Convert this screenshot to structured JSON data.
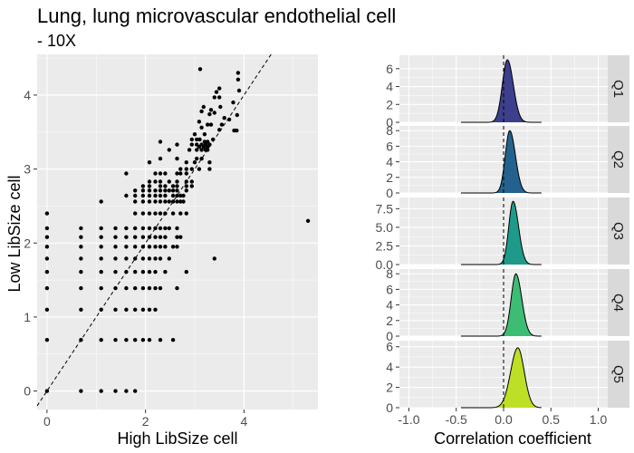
{
  "title": "Lung, lung microvascular endothelial cell",
  "subtitle": "- 10X",
  "colors": {
    "panel_bg": "#ebebeb",
    "grid": "#ffffff",
    "strip_bg": "#d9d9d9",
    "ridge_fills": [
      "#3b3f8c",
      "#23628e",
      "#1f9a8a",
      "#3dbc74",
      "#bddf26"
    ]
  },
  "chart_data": [
    {
      "type": "scatter",
      "xlabel": "High LibSize cell",
      "ylabel": "Low LibSize cell",
      "xlim": [
        -0.2,
        5.5
      ],
      "ylim": [
        -0.25,
        4.55
      ],
      "x_ticks": [
        "0",
        "2",
        "4"
      ],
      "y_ticks": [
        "0",
        "1",
        "2",
        "3",
        "4"
      ],
      "reference_line": "identity (dashed)",
      "points": [
        [
          0,
          0
        ],
        [
          0.69,
          0
        ],
        [
          1.1,
          0
        ],
        [
          1.39,
          0
        ],
        [
          1.61,
          0
        ],
        [
          1.79,
          0
        ],
        [
          0,
          0.69
        ],
        [
          0.69,
          0.69
        ],
        [
          1.1,
          0.69
        ],
        [
          1.39,
          0.69
        ],
        [
          1.61,
          0.69
        ],
        [
          1.79,
          0.69
        ],
        [
          1.95,
          0.69
        ],
        [
          2.08,
          0.69
        ],
        [
          2.3,
          0.69
        ],
        [
          2.56,
          0.69
        ],
        [
          0,
          1.1
        ],
        [
          0.69,
          1.1
        ],
        [
          1.1,
          1.1
        ],
        [
          1.39,
          1.1
        ],
        [
          1.61,
          1.1
        ],
        [
          1.79,
          1.1
        ],
        [
          1.95,
          1.1
        ],
        [
          2.08,
          1.1
        ],
        [
          2.2,
          1.1
        ],
        [
          0,
          1.39
        ],
        [
          0.69,
          1.39
        ],
        [
          1.1,
          1.39
        ],
        [
          1.39,
          1.39
        ],
        [
          1.61,
          1.39
        ],
        [
          1.79,
          1.39
        ],
        [
          1.95,
          1.39
        ],
        [
          2.08,
          1.39
        ],
        [
          2.2,
          1.39
        ],
        [
          2.3,
          1.39
        ],
        [
          2.64,
          1.39
        ],
        [
          0,
          1.61
        ],
        [
          0.69,
          1.61
        ],
        [
          1.1,
          1.61
        ],
        [
          1.39,
          1.61
        ],
        [
          1.61,
          1.61
        ],
        [
          1.79,
          1.61
        ],
        [
          1.95,
          1.61
        ],
        [
          2.08,
          1.61
        ],
        [
          2.2,
          1.61
        ],
        [
          2.4,
          1.61
        ],
        [
          2.83,
          1.61
        ],
        [
          0,
          1.79
        ],
        [
          0.69,
          1.79
        ],
        [
          1.1,
          1.79
        ],
        [
          1.39,
          1.79
        ],
        [
          1.61,
          1.79
        ],
        [
          1.79,
          1.79
        ],
        [
          1.95,
          1.79
        ],
        [
          2.08,
          1.79
        ],
        [
          2.2,
          1.79
        ],
        [
          2.3,
          1.79
        ],
        [
          2.48,
          1.79
        ],
        [
          3.4,
          1.79
        ],
        [
          0,
          1.95
        ],
        [
          0.69,
          1.95
        ],
        [
          1.1,
          1.95
        ],
        [
          1.39,
          1.95
        ],
        [
          1.61,
          1.95
        ],
        [
          1.79,
          1.95
        ],
        [
          1.95,
          1.95
        ],
        [
          2.08,
          1.95
        ],
        [
          2.2,
          1.95
        ],
        [
          2.3,
          1.95
        ],
        [
          2.4,
          1.95
        ],
        [
          2.56,
          1.95
        ],
        [
          2.64,
          1.95
        ],
        [
          0,
          2.08
        ],
        [
          0.69,
          2.08
        ],
        [
          1.1,
          2.08
        ],
        [
          1.39,
          2.08
        ],
        [
          1.61,
          2.08
        ],
        [
          1.79,
          2.08
        ],
        [
          1.95,
          2.08
        ],
        [
          2.08,
          2.08
        ],
        [
          2.2,
          2.08
        ],
        [
          2.3,
          2.08
        ],
        [
          2.4,
          2.08
        ],
        [
          2.64,
          2.08
        ],
        [
          2.71,
          2.08
        ],
        [
          0,
          2.2
        ],
        [
          0.69,
          2.2
        ],
        [
          1.1,
          2.2
        ],
        [
          1.39,
          2.2
        ],
        [
          1.61,
          2.2
        ],
        [
          1.79,
          2.2
        ],
        [
          1.95,
          2.2
        ],
        [
          2.08,
          2.2
        ],
        [
          2.2,
          2.2
        ],
        [
          2.3,
          2.2
        ],
        [
          2.4,
          2.2
        ],
        [
          2.48,
          2.2
        ],
        [
          2.64,
          2.2
        ],
        [
          0,
          2.4
        ],
        [
          1.79,
          2.4
        ],
        [
          1.95,
          2.4
        ],
        [
          2.08,
          2.4
        ],
        [
          2.2,
          2.4
        ],
        [
          2.3,
          2.4
        ],
        [
          2.4,
          2.4
        ],
        [
          2.56,
          2.4
        ],
        [
          2.71,
          2.4
        ],
        [
          2.83,
          2.4
        ],
        [
          1.1,
          2.56
        ],
        [
          1.79,
          2.56
        ],
        [
          1.95,
          2.56
        ],
        [
          2.08,
          2.56
        ],
        [
          2.2,
          2.56
        ],
        [
          2.3,
          2.56
        ],
        [
          2.4,
          2.56
        ],
        [
          2.48,
          2.56
        ],
        [
          2.56,
          2.56
        ],
        [
          2.64,
          2.56
        ],
        [
          2.71,
          2.56
        ],
        [
          2.77,
          2.56
        ],
        [
          1.61,
          2.64
        ],
        [
          1.79,
          2.64
        ],
        [
          1.95,
          2.64
        ],
        [
          2.08,
          2.64
        ],
        [
          2.2,
          2.64
        ],
        [
          2.3,
          2.64
        ],
        [
          2.4,
          2.64
        ],
        [
          2.56,
          2.64
        ],
        [
          2.64,
          2.64
        ],
        [
          2.71,
          2.64
        ],
        [
          2.77,
          2.64
        ],
        [
          1.79,
          2.71
        ],
        [
          1.95,
          2.71
        ],
        [
          2.08,
          2.71
        ],
        [
          2.2,
          2.71
        ],
        [
          2.3,
          2.71
        ],
        [
          2.4,
          2.71
        ],
        [
          2.48,
          2.71
        ],
        [
          2.56,
          2.71
        ],
        [
          2.64,
          2.71
        ],
        [
          2.83,
          2.71
        ],
        [
          1.95,
          2.77
        ],
        [
          2.08,
          2.77
        ],
        [
          2.3,
          2.77
        ],
        [
          2.4,
          2.77
        ],
        [
          2.56,
          2.77
        ],
        [
          2.64,
          2.77
        ],
        [
          2.83,
          2.77
        ],
        [
          2.94,
          2.77
        ],
        [
          2.08,
          2.83
        ],
        [
          2.2,
          2.83
        ],
        [
          2.3,
          2.83
        ],
        [
          2.48,
          2.83
        ],
        [
          2.64,
          2.83
        ],
        [
          2.83,
          2.83
        ],
        [
          2.94,
          2.83
        ],
        [
          2.2,
          2.94
        ],
        [
          2.3,
          2.94
        ],
        [
          2.4,
          2.94
        ],
        [
          2.64,
          2.94
        ],
        [
          2.71,
          2.94
        ],
        [
          2.83,
          2.94
        ],
        [
          1.61,
          2.94
        ],
        [
          2.71,
          3.0
        ],
        [
          2.83,
          3.0
        ],
        [
          2.94,
          3.0
        ],
        [
          3.09,
          3.0
        ],
        [
          3.3,
          3.0
        ],
        [
          2.08,
          3.09
        ],
        [
          2.83,
          3.09
        ],
        [
          3.0,
          3.09
        ],
        [
          3.3,
          3.09
        ],
        [
          2.3,
          3.14
        ],
        [
          2.64,
          3.14
        ],
        [
          3.04,
          3.14
        ],
        [
          3.14,
          3.14
        ],
        [
          2.48,
          3.26
        ],
        [
          2.89,
          3.26
        ],
        [
          3.04,
          3.26
        ],
        [
          3.14,
          3.26
        ],
        [
          3.22,
          3.26
        ],
        [
          3.26,
          3.26
        ],
        [
          3.09,
          3.3
        ],
        [
          3.18,
          3.3
        ],
        [
          3.26,
          3.3
        ],
        [
          2.64,
          3.33
        ],
        [
          2.94,
          3.33
        ],
        [
          3.04,
          3.33
        ],
        [
          3.14,
          3.33
        ],
        [
          3.22,
          3.33
        ],
        [
          3.3,
          3.33
        ],
        [
          2.3,
          3.37
        ],
        [
          3.2,
          3.37
        ],
        [
          3.26,
          3.37
        ],
        [
          2.94,
          3.4
        ],
        [
          3.04,
          3.4
        ],
        [
          3.1,
          3.4
        ],
        [
          3.37,
          3.4
        ],
        [
          3.0,
          3.47
        ],
        [
          3.2,
          3.47
        ],
        [
          3.8,
          3.52
        ],
        [
          3.85,
          3.52
        ],
        [
          3.5,
          3.53
        ],
        [
          3.14,
          3.56
        ],
        [
          3.26,
          3.6
        ],
        [
          3.33,
          3.6
        ],
        [
          3.55,
          3.6
        ],
        [
          3.09,
          3.64
        ],
        [
          3.7,
          3.67
        ],
        [
          3.6,
          3.69
        ],
        [
          3.86,
          3.73
        ],
        [
          3.3,
          3.74
        ],
        [
          3.4,
          3.76
        ],
        [
          3.14,
          3.78
        ],
        [
          3.33,
          3.8
        ],
        [
          3.18,
          3.84
        ],
        [
          3.52,
          3.84
        ],
        [
          3.78,
          3.9
        ],
        [
          3.4,
          3.97
        ],
        [
          3.5,
          3.97
        ],
        [
          3.44,
          4.04
        ],
        [
          3.9,
          4.06
        ],
        [
          3.5,
          4.09
        ],
        [
          3.88,
          4.21
        ],
        [
          3.88,
          4.3
        ],
        [
          3.11,
          4.35
        ],
        [
          5.3,
          2.3
        ]
      ]
    },
    {
      "type": "area",
      "xlabel": "Correlation coefficient",
      "xlim": [
        -1.1,
        1.1
      ],
      "x_ticks": [
        "-1.0",
        "-0.5",
        "0.0",
        "0.5",
        "1.0"
      ],
      "x_tick_values": [
        -1.0,
        -0.5,
        0.0,
        0.5,
        1.0
      ],
      "reference_x": 0,
      "support": [
        -0.45,
        0.4
      ],
      "panels": [
        {
          "label": "Q1",
          "ylim": [
            0,
            7.5
          ],
          "y_ticks": [
            "0",
            "2",
            "4",
            "6"
          ],
          "y_tick_values": [
            0,
            2,
            4,
            6
          ],
          "mean": 0.04,
          "sd_left": 0.053,
          "sd_right": 0.063,
          "peak": 7.0
        },
        {
          "label": "Q2",
          "ylim": [
            0,
            8.6
          ],
          "y_ticks": [
            "0",
            "2",
            "4",
            "6",
            "8"
          ],
          "y_tick_values": [
            0,
            2,
            4,
            6,
            8
          ],
          "mean": 0.065,
          "sd_left": 0.047,
          "sd_right": 0.06,
          "peak": 8.0
        },
        {
          "label": "Q3",
          "ylim": [
            0,
            9.0
          ],
          "y_ticks": [
            "0.0",
            "2.5",
            "5.0",
            "7.5"
          ],
          "y_tick_values": [
            0,
            2.5,
            5.0,
            7.5
          ],
          "mean": 0.1,
          "sd_left": 0.045,
          "sd_right": 0.058,
          "peak": 8.5
        },
        {
          "label": "Q4",
          "ylim": [
            0,
            8.6
          ],
          "y_ticks": [
            "0",
            "2",
            "4",
            "6",
            "8"
          ],
          "y_tick_values": [
            0,
            2,
            4,
            6,
            8
          ],
          "mean": 0.13,
          "sd_left": 0.05,
          "sd_right": 0.062,
          "peak": 8.0
        },
        {
          "label": "Q5",
          "ylim": [
            0,
            6.6
          ],
          "y_ticks": [
            "0",
            "2",
            "4",
            "6"
          ],
          "y_tick_values": [
            0,
            2,
            4,
            6
          ],
          "mean": 0.15,
          "sd_left": 0.075,
          "sd_right": 0.068,
          "peak": 5.9
        }
      ]
    }
  ]
}
